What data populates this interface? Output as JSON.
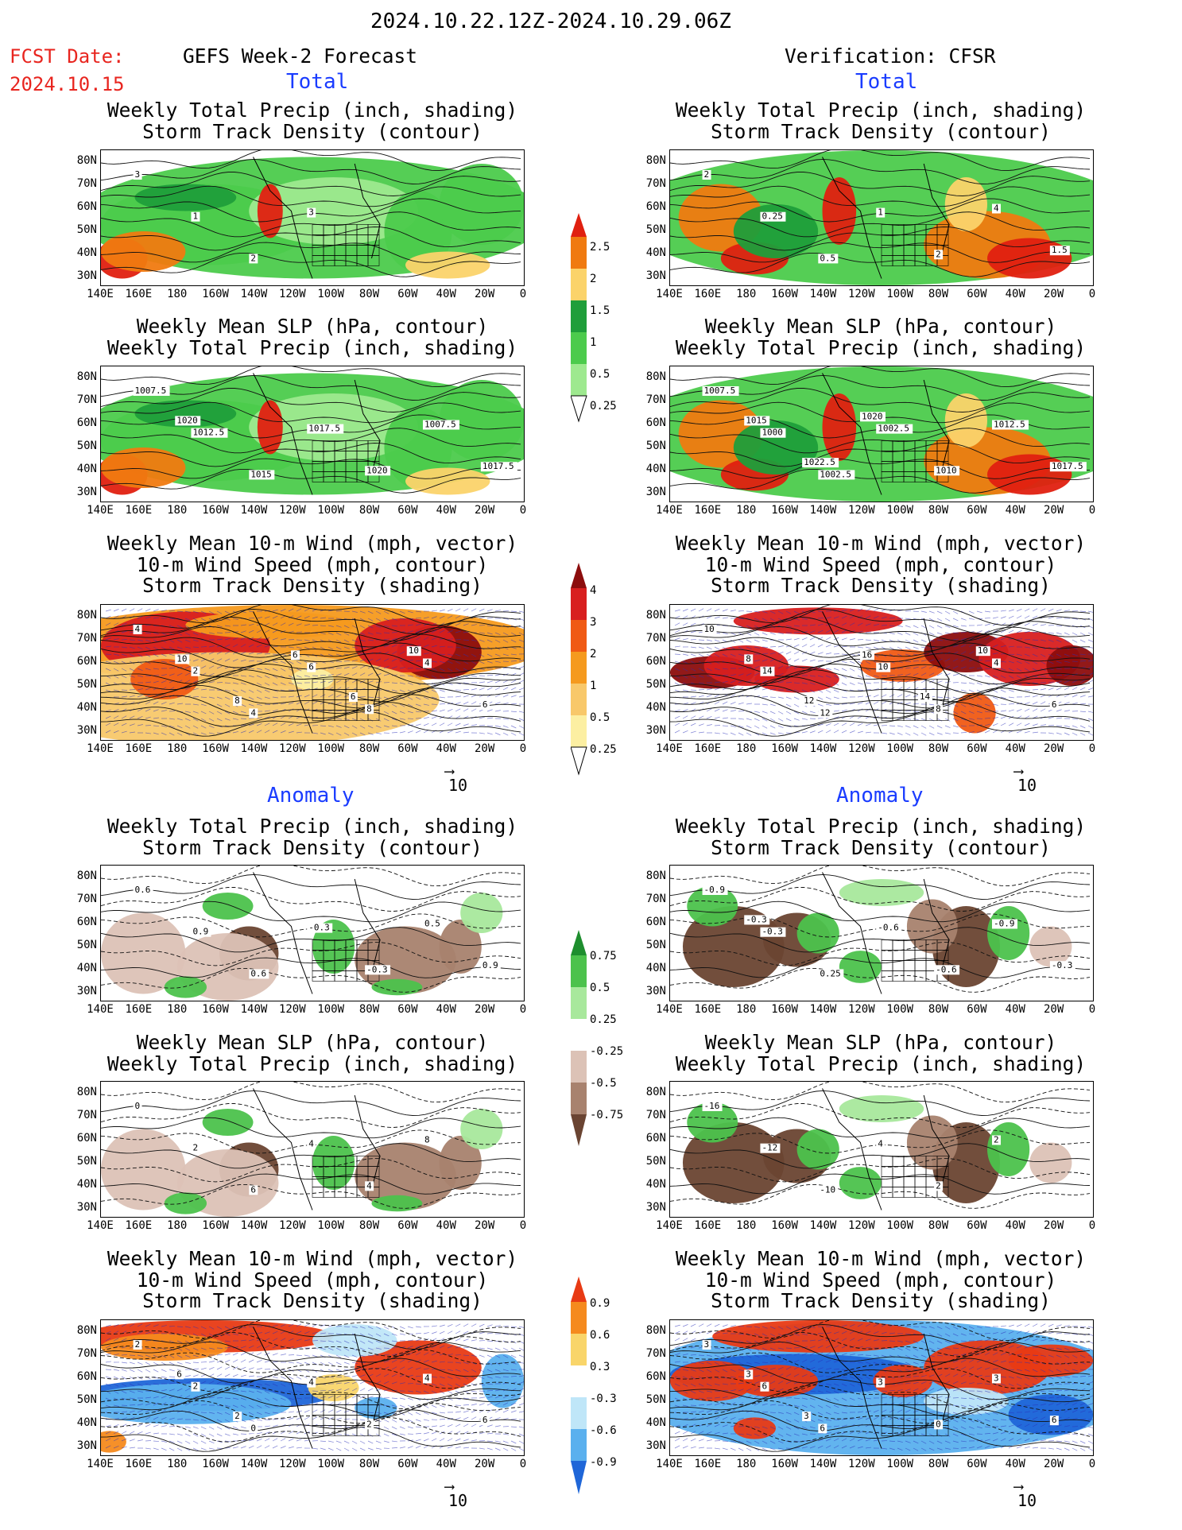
{
  "header": {
    "date_range": "2024.10.22.12Z-2024.10.29.06Z",
    "fcst_label": "FCST Date:",
    "fcst_date": "2024.10.15",
    "left_title": "GEFS Week-2 Forecast",
    "right_title": "Verification: CFSR"
  },
  "sections": {
    "total": "Total",
    "anomaly": "Anomaly"
  },
  "panel_titles": {
    "precip_track": [
      "Weekly Total Precip (inch, shading)",
      "Storm Track Density (contour)"
    ],
    "slp_precip": [
      "Weekly Mean SLP (hPa, contour)",
      "Weekly Total Precip (inch, shading)"
    ],
    "wind_track": [
      "Weekly Mean 10-m Wind (mph, vector)",
      "10-m Wind Speed (mph, contour)",
      "Storm Track Density (shading)"
    ]
  },
  "axes": {
    "lat_labels": [
      "80N",
      "70N",
      "60N",
      "50N",
      "40N",
      "30N"
    ],
    "lon_labels": [
      "140E",
      "160E",
      "180",
      "160W",
      "140W",
      "120W",
      "100W",
      "80W",
      "60W",
      "40W",
      "20W",
      "0"
    ]
  },
  "vector_ref": "10",
  "colorbars": {
    "precip_total": [
      "2.5",
      "2",
      "1.5",
      "1",
      "0.5",
      "0.25"
    ],
    "track_total": [
      "4",
      "3",
      "2",
      "1",
      "0.5",
      "0.25"
    ],
    "precip_anom": [
      "0.75",
      "0.5",
      "0.25",
      "-0.25",
      "-0.5",
      "-0.75"
    ],
    "track_anom": [
      "0.9",
      "0.6",
      "0.3",
      "-0.3",
      "-0.6",
      "-0.9"
    ]
  },
  "contour_labels": {
    "p1L": [
      "3",
      "1",
      "2",
      "3"
    ],
    "p1R": [
      "2",
      "0.25",
      "0.5",
      "1",
      "2",
      "4",
      "1.5"
    ],
    "p2L": [
      "1007.5",
      "1012.5",
      "1015",
      "1017.5",
      "1020",
      "1007.5",
      "1017.5",
      "1020"
    ],
    "p2R": [
      "1007.5",
      "1000",
      "1002.5",
      "1002.5",
      "1010",
      "1012.5",
      "1017.5",
      "1015",
      "1022.5",
      "1020"
    ],
    "p3L": [
      "4",
      "2",
      "4",
      "6",
      "8",
      "4",
      "6",
      "10",
      "8",
      "6",
      "6",
      "10"
    ],
    "p3R": [
      "10",
      "14",
      "12",
      "10",
      "8",
      "4",
      "6",
      "8",
      "12",
      "16",
      "14",
      "10"
    ],
    "p4L": [
      "0.6",
      "0.9",
      "0.6",
      "-0.3",
      "-0.3",
      "0.5",
      "0.9"
    ],
    "p4R": [
      "-0.9",
      "-0.3",
      "0.25",
      "-0.6",
      "-0.6",
      "-0.9",
      "-0.3",
      "-0.3"
    ],
    "p5L": [
      "0",
      "2",
      "6",
      "4",
      "4",
      "8"
    ],
    "p5R": [
      "-16",
      "-12",
      "-10",
      "4",
      "2",
      "2"
    ],
    "p6L": [
      "2",
      "2",
      "0",
      "4",
      "2",
      "4",
      "6",
      "6",
      "2"
    ],
    "p6R": [
      "3",
      "6",
      "6",
      "3",
      "0",
      "3",
      "6",
      "3",
      "3"
    ]
  }
}
